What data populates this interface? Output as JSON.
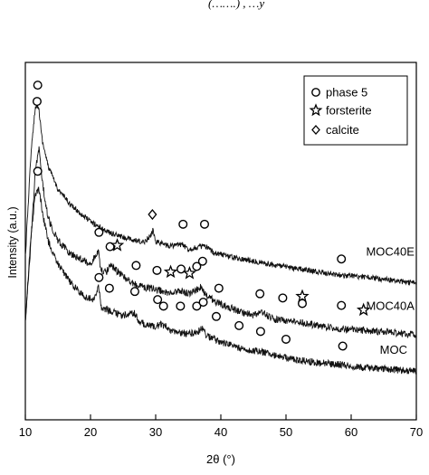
{
  "top_caption": "(…….) , …y",
  "chart_data": {
    "type": "line",
    "title": "",
    "xlabel": "2θ (°)",
    "ylabel": "Intensity (a.u.)",
    "xlim": [
      10,
      70
    ],
    "xticks": [
      10,
      20,
      30,
      40,
      50,
      60,
      70
    ],
    "yticks_visible": false,
    "grid": false,
    "legend": {
      "placement": "top-right",
      "entries": [
        {
          "marker": "circle",
          "label": "phase 5"
        },
        {
          "marker": "star",
          "label": "forsterite"
        },
        {
          "marker": "diamond",
          "label": "calcite"
        }
      ]
    },
    "series": [
      {
        "name": "MOC40E",
        "noise": 1.4,
        "points": [
          [
            10,
            0.5
          ],
          [
            10.8,
            0.8
          ],
          [
            11.5,
            0.96
          ],
          [
            12.0,
            0.97
          ],
          [
            12.6,
            0.86
          ],
          [
            13.5,
            0.78
          ],
          [
            15,
            0.71
          ],
          [
            17,
            0.66
          ],
          [
            20,
            0.61
          ],
          [
            23,
            0.575
          ],
          [
            26,
            0.555
          ],
          [
            28,
            0.545
          ],
          [
            29.2,
            0.565
          ],
          [
            29.6,
            0.585
          ],
          [
            30,
            0.55
          ],
          [
            32,
            0.535
          ],
          [
            34,
            0.54
          ],
          [
            35,
            0.525
          ],
          [
            37.3,
            0.535
          ],
          [
            39,
            0.515
          ],
          [
            42,
            0.5
          ],
          [
            46,
            0.485
          ],
          [
            50,
            0.47
          ],
          [
            55,
            0.455
          ],
          [
            58.5,
            0.445
          ],
          [
            62,
            0.44
          ],
          [
            66,
            0.43
          ],
          [
            70,
            0.42
          ]
        ]
      },
      {
        "name": "MOC40A",
        "noise": 1.8,
        "points": [
          [
            10,
            0.31
          ],
          [
            10.8,
            0.53
          ],
          [
            11.5,
            0.76
          ],
          [
            12.1,
            0.84
          ],
          [
            12.7,
            0.72
          ],
          [
            13.5,
            0.62
          ],
          [
            15,
            0.55
          ],
          [
            17,
            0.51
          ],
          [
            20,
            0.48
          ],
          [
            21.2,
            0.52
          ],
          [
            21.6,
            0.46
          ],
          [
            22.5,
            0.455
          ],
          [
            23,
            0.48
          ],
          [
            24,
            0.46
          ],
          [
            25,
            0.44
          ],
          [
            27,
            0.415
          ],
          [
            30,
            0.4
          ],
          [
            32,
            0.39
          ],
          [
            33.5,
            0.395
          ],
          [
            35.5,
            0.39
          ],
          [
            36.3,
            0.4
          ],
          [
            37.1,
            0.41
          ],
          [
            37.6,
            0.385
          ],
          [
            39.5,
            0.36
          ],
          [
            42,
            0.34
          ],
          [
            45,
            0.32
          ],
          [
            46.1,
            0.335
          ],
          [
            48,
            0.31
          ],
          [
            52,
            0.3
          ],
          [
            55,
            0.29
          ],
          [
            58.5,
            0.28
          ],
          [
            62,
            0.275
          ],
          [
            66,
            0.27
          ],
          [
            70,
            0.26
          ]
        ]
      },
      {
        "name": "MOC",
        "noise": 1.8,
        "points": [
          [
            10,
            0.3
          ],
          [
            10.8,
            0.55
          ],
          [
            11.5,
            0.69
          ],
          [
            12.1,
            0.71
          ],
          [
            12.7,
            0.63
          ],
          [
            13.5,
            0.55
          ],
          [
            15,
            0.48
          ],
          [
            17,
            0.42
          ],
          [
            19,
            0.38
          ],
          [
            20.5,
            0.37
          ],
          [
            21.2,
            0.41
          ],
          [
            21.7,
            0.345
          ],
          [
            23,
            0.335
          ],
          [
            25,
            0.32
          ],
          [
            26.7,
            0.33
          ],
          [
            27.5,
            0.3
          ],
          [
            30,
            0.285
          ],
          [
            30.8,
            0.295
          ],
          [
            33,
            0.27
          ],
          [
            35,
            0.265
          ],
          [
            36.5,
            0.27
          ],
          [
            37.2,
            0.285
          ],
          [
            37.7,
            0.26
          ],
          [
            40,
            0.24
          ],
          [
            43,
            0.22
          ],
          [
            46,
            0.21
          ],
          [
            50,
            0.19
          ],
          [
            55,
            0.175
          ],
          [
            58.7,
            0.17
          ],
          [
            62,
            0.16
          ],
          [
            66,
            0.155
          ],
          [
            70,
            0.15
          ]
        ]
      }
    ],
    "series_labels": [
      {
        "text": "MOC40E",
        "x": 66.0,
        "y": 0.505
      },
      {
        "text": "MOC40A",
        "x": 66.0,
        "y": 0.338
      },
      {
        "text": "MOC",
        "x": 66.5,
        "y": 0.203
      }
    ],
    "markers": [
      {
        "type": "circle",
        "x": 11.9,
        "y": 1.03
      },
      {
        "type": "circle",
        "x": 11.8,
        "y": 0.98
      },
      {
        "type": "diamond",
        "x": 29.5,
        "y": 0.632
      },
      {
        "type": "circle",
        "x": 34.2,
        "y": 0.602
      },
      {
        "type": "circle",
        "x": 37.5,
        "y": 0.602
      },
      {
        "type": "circle",
        "x": 58.5,
        "y": 0.495
      },
      {
        "type": "circle",
        "x": 21.3,
        "y": 0.577
      },
      {
        "type": "circle",
        "x": 23.0,
        "y": 0.533
      },
      {
        "type": "star",
        "x": 24.1,
        "y": 0.537
      },
      {
        "type": "circle",
        "x": 27.0,
        "y": 0.475
      },
      {
        "type": "circle",
        "x": 30.2,
        "y": 0.46
      },
      {
        "type": "star",
        "x": 32.3,
        "y": 0.455
      },
      {
        "type": "circle",
        "x": 33.9,
        "y": 0.464
      },
      {
        "type": "star",
        "x": 35.2,
        "y": 0.451
      },
      {
        "type": "circle",
        "x": 36.3,
        "y": 0.472
      },
      {
        "type": "circle",
        "x": 37.2,
        "y": 0.488
      },
      {
        "type": "circle",
        "x": 39.7,
        "y": 0.405
      },
      {
        "type": "circle",
        "x": 46.0,
        "y": 0.388
      },
      {
        "type": "circle",
        "x": 49.5,
        "y": 0.375
      },
      {
        "type": "star",
        "x": 52.5,
        "y": 0.38
      },
      {
        "type": "circle",
        "x": 52.5,
        "y": 0.358
      },
      {
        "type": "circle",
        "x": 58.5,
        "y": 0.352
      },
      {
        "type": "star",
        "x": 61.9,
        "y": 0.338
      },
      {
        "type": "circle",
        "x": 11.9,
        "y": 0.765
      },
      {
        "type": "circle",
        "x": 21.3,
        "y": 0.438
      },
      {
        "type": "circle",
        "x": 22.9,
        "y": 0.405
      },
      {
        "type": "circle",
        "x": 26.8,
        "y": 0.395
      },
      {
        "type": "circle",
        "x": 30.3,
        "y": 0.37
      },
      {
        "type": "circle",
        "x": 31.2,
        "y": 0.35
      },
      {
        "type": "circle",
        "x": 33.8,
        "y": 0.35
      },
      {
        "type": "circle",
        "x": 36.3,
        "y": 0.35
      },
      {
        "type": "circle",
        "x": 37.3,
        "y": 0.362
      },
      {
        "type": "circle",
        "x": 39.3,
        "y": 0.318
      },
      {
        "type": "circle",
        "x": 42.8,
        "y": 0.29
      },
      {
        "type": "circle",
        "x": 46.1,
        "y": 0.272
      },
      {
        "type": "circle",
        "x": 50.0,
        "y": 0.248
      },
      {
        "type": "circle",
        "x": 58.7,
        "y": 0.227
      }
    ],
    "ylim": [
      0,
      1.1
    ]
  }
}
